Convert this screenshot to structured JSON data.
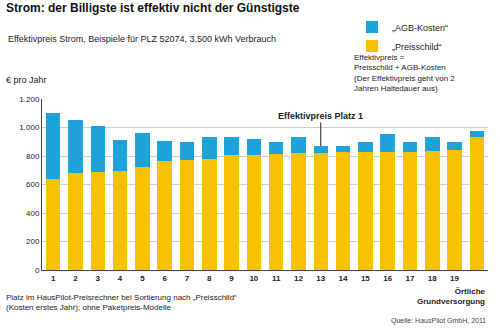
{
  "chart_data": {
    "type": "bar",
    "stacked": true,
    "title": "Strom: der Billigste ist effektiv nicht der Günstigste",
    "subtitle": "Effektivpreis Strom, Beispiele für PLZ 52074, 3.500 kWh Verbrauch",
    "y_label": "€ pro Jahr",
    "categories": [
      "1",
      "2",
      "3",
      "4",
      "5",
      "6",
      "7",
      "8",
      "9",
      "10",
      "11",
      "12",
      "13",
      "14",
      "15",
      "16",
      "17",
      "18",
      "19",
      null
    ],
    "series": [
      {
        "name": "„Preisschild“",
        "color": "#f6c200",
        "values": [
          640,
          680,
          685,
          695,
          720,
          765,
          770,
          780,
          805,
          810,
          815,
          820,
          820,
          825,
          830,
          830,
          830,
          835,
          840,
          930
        ]
      },
      {
        "name": "„AGB-Kosten“",
        "color": "#1ea2dc",
        "values": [
          460,
          370,
          325,
          220,
          240,
          140,
          130,
          155,
          125,
          110,
          85,
          110,
          50,
          45,
          70,
          125,
          65,
          95,
          60,
          45
        ]
      }
    ],
    "ylim": [
      0,
      1200
    ],
    "yticks": [
      0,
      200,
      400,
      600,
      800,
      {
        "value": 1000,
        "label": "1.000"
      },
      {
        "value": 1200,
        "label": "1.200"
      }
    ],
    "grid": true,
    "legend": "top right",
    "annotations": [
      {
        "text": "Effektivpreis Platz 1",
        "category": "13"
      }
    ],
    "formula_note": [
      "Effektivpreis =",
      "Preisschild + AGB-Kosten",
      "(Der Effektivpreis geht von 2",
      "Jahren Haltedauer aus)"
    ],
    "last_bar_label": [
      "Örtliche",
      "Grundversorgung"
    ],
    "x_note": [
      "Platz im HausPilot-Preisrechner bei Sortierung nach „Preisschild“",
      "(Kosten erstes Jahr); ohne Paketpreis-Modelle"
    ],
    "source": "Quelle: HausPilot GmbH, 2011"
  }
}
